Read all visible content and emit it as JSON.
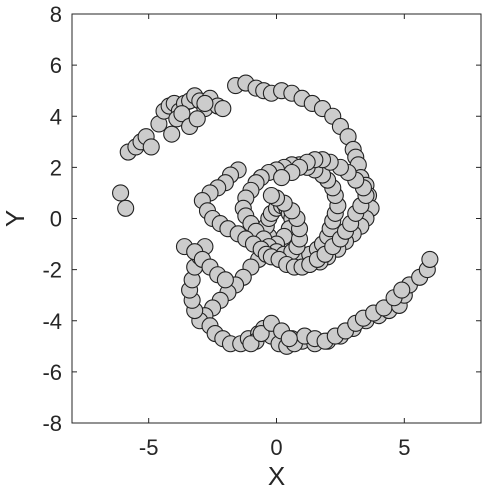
{
  "chart_data": {
    "type": "scatter",
    "title": "",
    "xlabel": "X",
    "ylabel": "Y",
    "xlim": [
      -8,
      8
    ],
    "ylim": [
      -8,
      8
    ],
    "x_ticks": [
      -5,
      0,
      5
    ],
    "x_tick_labels": [
      "-5",
      "0",
      "5"
    ],
    "y_ticks": [
      8,
      6,
      4,
      2,
      0,
      -2,
      -4,
      -6,
      -8
    ],
    "y_tick_labels": [
      "8",
      "6",
      "4",
      "2",
      "0",
      "-2",
      "-4",
      "-6",
      "-8"
    ],
    "grid": false,
    "marker_color": "#cccccc",
    "marker_edge_color": "#222222",
    "series": [
      {
        "x": [
          -6.1,
          -5.9,
          -5.8,
          -5.5,
          -5.3,
          -5.1,
          -4.9,
          -4.6,
          -4.4,
          -4.2,
          -4.0,
          -3.8,
          -3.6,
          -3.4,
          -3.2,
          -3.0,
          -2.8,
          -2.6,
          -2.3,
          -2.1,
          -1.6,
          -1.2,
          -0.8,
          -0.5,
          -0.2,
          0.2,
          0.6,
          1.0,
          1.4,
          1.8,
          2.2,
          2.5,
          2.8,
          3.0,
          3.1,
          3.2,
          3.3,
          3.5,
          3.6,
          3.7,
          3.5,
          3.3,
          3.0,
          2.7,
          2.4,
          2.0,
          1.7,
          1.3,
          1.0,
          0.7,
          0.4,
          0.1,
          -0.1,
          -0.3,
          -0.4,
          -0.3,
          -0.2,
          0.0,
          0.2,
          0.4,
          0.5,
          0.6,
          0.5,
          0.3,
          0.0,
          -0.3,
          -0.5,
          -0.7,
          -1.0,
          -1.3,
          -1.6,
          -1.9,
          -2.2,
          -2.5,
          -2.8,
          -3.0,
          -3.2,
          -3.3,
          -3.4,
          -3.3,
          -3.2,
          -3.0,
          -2.8,
          -2.6,
          -2.4,
          -2.1,
          -1.8,
          -1.4,
          -1.1,
          -0.7,
          -0.3,
          0.1,
          0.6,
          1.0,
          1.5,
          2.0,
          2.5,
          3.0,
          3.5,
          4.0,
          4.4,
          4.8,
          5.0,
          5.2,
          5.6,
          5.9,
          6.0,
          1.0,
          1.3,
          1.6,
          1.8,
          2.0,
          2.1,
          2.2,
          2.3,
          2.4,
          2.3,
          2.2,
          2.0,
          1.8,
          1.5,
          1.2,
          0.9,
          0.6,
          0.3,
          0.0,
          -0.3,
          -0.6,
          -0.8,
          -1.0,
          -1.2,
          -1.3,
          -1.2,
          -1.0,
          -0.8,
          -0.5,
          -0.3,
          0.0,
          0.3,
          0.6,
          0.8,
          0.9,
          0.9,
          0.8,
          0.6,
          0.3,
          0.0,
          -0.2,
          -1.5,
          -1.8,
          -2.0,
          -2.3,
          -2.6,
          -2.9,
          -2.7,
          -2.5,
          -2.2,
          -1.9,
          -1.5,
          -1.2,
          -0.9,
          -0.6,
          -0.4,
          -0.2,
          0.1,
          0.4,
          0.7,
          1.0,
          1.3,
          1.6,
          1.9,
          2.2,
          2.5,
          2.7,
          2.9,
          3.1,
          3.3,
          3.5,
          3.4,
          3.1,
          2.8,
          2.5,
          2.1,
          1.8,
          1.5,
          1.2,
          0.9,
          0.6,
          0.2,
          -0.8,
          -0.5,
          -0.2,
          0.1,
          0.4,
          0.7,
          1.1,
          1.5,
          1.9,
          2.3,
          2.7,
          3.1,
          3.4,
          3.8,
          4.2,
          4.6,
          4.9,
          -1.0,
          -0.6,
          -0.2,
          0.2,
          0.5,
          -3.6,
          -3.2,
          -2.9,
          -2.6,
          -2.3,
          -2.0,
          -4.1,
          -3.9,
          -3.7,
          -3.4,
          -3.1,
          -2.8
        ],
        "y": [
          1.0,
          0.4,
          2.6,
          2.8,
          3.0,
          3.2,
          2.8,
          3.7,
          4.2,
          4.4,
          4.5,
          4.2,
          4.5,
          4.6,
          4.8,
          4.6,
          4.3,
          4.7,
          4.4,
          4.3,
          5.2,
          5.3,
          5.1,
          5.0,
          4.9,
          5.0,
          4.9,
          4.7,
          4.5,
          4.3,
          4.0,
          3.6,
          3.2,
          2.7,
          2.4,
          2.1,
          1.6,
          1.3,
          0.9,
          0.4,
          0.0,
          -0.3,
          -0.6,
          -0.9,
          -1.2,
          -1.5,
          -1.7,
          -1.8,
          -1.8,
          -1.7,
          -1.5,
          -1.3,
          -1.0,
          -0.7,
          -0.3,
          0.0,
          0.2,
          0.4,
          0.5,
          0.4,
          0.2,
          0.0,
          -0.4,
          -0.7,
          -1.0,
          -1.2,
          -1.4,
          -1.6,
          -1.9,
          -2.3,
          -2.6,
          -2.9,
          -3.2,
          -3.5,
          -3.8,
          -4.0,
          -3.6,
          -3.2,
          -2.8,
          -2.4,
          -1.9,
          -1.5,
          -1.1,
          -4.2,
          -4.5,
          -4.7,
          -4.9,
          -4.9,
          -4.7,
          -4.5,
          -4.4,
          -4.6,
          -4.7,
          -4.8,
          -4.9,
          -4.8,
          -4.6,
          -4.3,
          -4.0,
          -3.8,
          -3.6,
          -3.4,
          -3.0,
          -2.6,
          -2.3,
          -2.0,
          -1.6,
          -1.6,
          -1.4,
          -1.2,
          -1.0,
          -0.7,
          -0.4,
          -0.1,
          0.2,
          0.5,
          0.9,
          1.2,
          1.5,
          1.7,
          1.9,
          2.0,
          2.1,
          2.1,
          2.0,
          1.9,
          1.8,
          1.6,
          1.4,
          1.1,
          0.8,
          0.4,
          0.1,
          -0.2,
          -0.5,
          -0.8,
          -1.1,
          -1.3,
          -1.4,
          -1.3,
          -1.1,
          -0.8,
          -0.4,
          0.0,
          0.3,
          0.6,
          0.8,
          0.9,
          1.9,
          1.7,
          1.4,
          1.2,
          1.0,
          0.7,
          0.3,
          0.0,
          -0.2,
          -0.4,
          -0.6,
          -0.8,
          -1.0,
          -1.2,
          -1.4,
          -1.5,
          -1.6,
          -1.8,
          -1.9,
          -1.9,
          -1.8,
          -1.6,
          -1.4,
          -1.1,
          -0.8,
          -0.5,
          -0.2,
          0.2,
          0.5,
          0.9,
          1.2,
          1.5,
          1.8,
          2.0,
          2.2,
          2.3,
          2.3,
          2.2,
          2.0,
          1.8,
          1.6,
          -4.8,
          -4.3,
          -4.6,
          -4.9,
          -5.0,
          -4.9,
          -4.6,
          -4.7,
          -4.8,
          -4.6,
          -4.4,
          -4.1,
          -3.9,
          -3.7,
          -3.5,
          -3.1,
          -2.8,
          -4.9,
          -4.5,
          -4.1,
          -4.4,
          -4.7,
          -1.1,
          -1.3,
          -1.6,
          -1.9,
          -2.2,
          -2.4,
          3.3,
          3.9,
          4.1,
          3.6,
          3.9,
          4.5
        ]
      }
    ]
  }
}
